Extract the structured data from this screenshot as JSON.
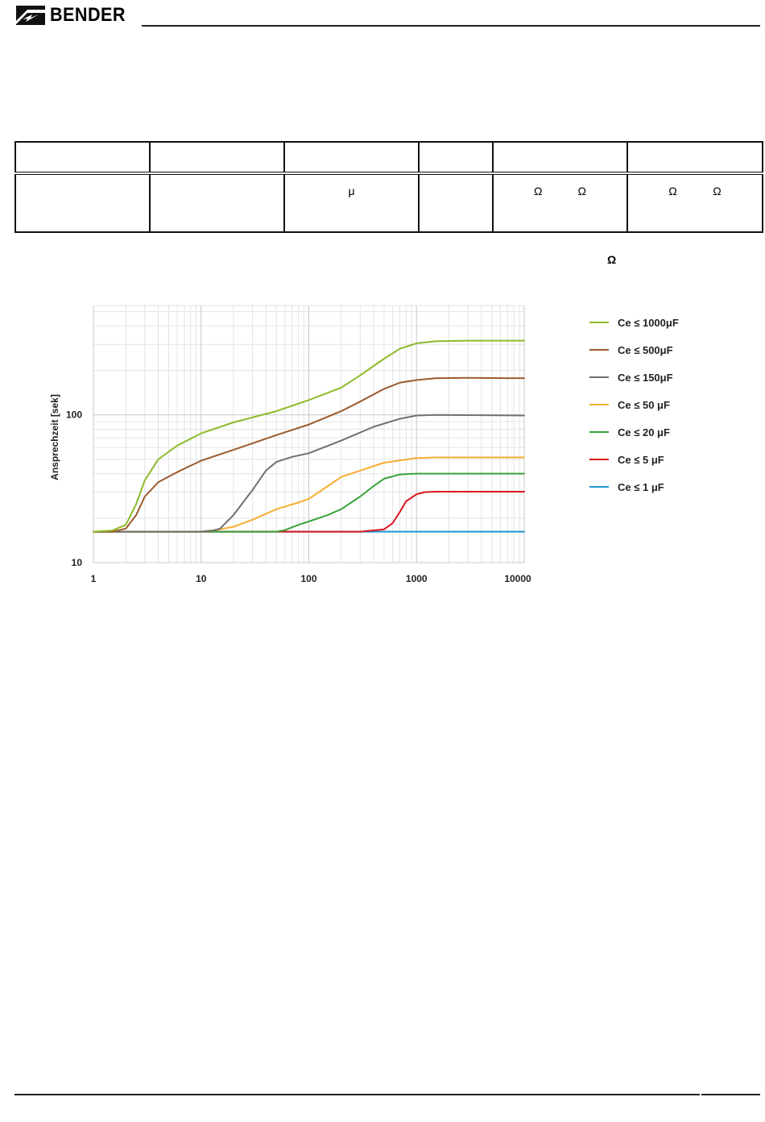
{
  "header": {
    "brand": "BENDER",
    "logo_icon": "bender-logo-icon"
  },
  "table": {
    "symbols": {
      "micro": "μ",
      "omega": "Ω"
    }
  },
  "omega_label": "Ω",
  "colors": {
    "series_1000": "#8dbb2a",
    "series_500": "#9b5a2d",
    "series_150": "#707070",
    "series_50": "#f6ae33",
    "series_20": "#3aa23a",
    "series_5": "#d8141c",
    "series_1": "#1f95d3"
  },
  "chart_data": {
    "type": "line",
    "title": "",
    "xlabel": "",
    "ylabel": "Ansprechzeit [sek]",
    "xscale": "log",
    "yscale": "log",
    "xlim": [
      1,
      10000
    ],
    "ylim": [
      10,
      550
    ],
    "x_ticks": [
      "1",
      "10",
      "100",
      "1000",
      "10000"
    ],
    "y_ticks": [
      "10",
      "100"
    ],
    "grid": true,
    "legend_position": "right",
    "series": [
      {
        "name": "Ce ≤ 1000μF",
        "color": "#8dbb2a",
        "points": [
          [
            1,
            16.2
          ],
          [
            1.5,
            16.5
          ],
          [
            2,
            18
          ],
          [
            2.5,
            25
          ],
          [
            3,
            36
          ],
          [
            4,
            50
          ],
          [
            6,
            62
          ],
          [
            10,
            75
          ],
          [
            20,
            89
          ],
          [
            50,
            106
          ],
          [
            100,
            126
          ],
          [
            200,
            153
          ],
          [
            300,
            185
          ],
          [
            500,
            240
          ],
          [
            700,
            280
          ],
          [
            1000,
            305
          ],
          [
            1500,
            315
          ],
          [
            3000,
            318
          ],
          [
            10000,
            318
          ]
        ]
      },
      {
        "name": "Ce ≤ 500μF",
        "color": "#9b5a2d",
        "points": [
          [
            1,
            16.2
          ],
          [
            1.5,
            16.2
          ],
          [
            2,
            17
          ],
          [
            2.5,
            21
          ],
          [
            3,
            28
          ],
          [
            4,
            35
          ],
          [
            6,
            41
          ],
          [
            10,
            49
          ],
          [
            20,
            58
          ],
          [
            50,
            73
          ],
          [
            100,
            86
          ],
          [
            200,
            106
          ],
          [
            300,
            123
          ],
          [
            500,
            150
          ],
          [
            700,
            165
          ],
          [
            1000,
            172
          ],
          [
            1500,
            177
          ],
          [
            3000,
            178
          ],
          [
            10000,
            177
          ]
        ]
      },
      {
        "name": "Ce ≤ 150μF",
        "color": "#707070",
        "points": [
          [
            1,
            16.2
          ],
          [
            10,
            16.2
          ],
          [
            13,
            16.5
          ],
          [
            15,
            17
          ],
          [
            20,
            21
          ],
          [
            30,
            31
          ],
          [
            40,
            42
          ],
          [
            50,
            48
          ],
          [
            70,
            52
          ],
          [
            100,
            55
          ],
          [
            200,
            67
          ],
          [
            400,
            83
          ],
          [
            700,
            94
          ],
          [
            1000,
            99
          ],
          [
            1500,
            100
          ],
          [
            10000,
            99
          ]
        ]
      },
      {
        "name": "Ce ≤ 50 μF",
        "color": "#f6ae33",
        "points": [
          [
            1,
            16.2
          ],
          [
            10,
            16.2
          ],
          [
            15,
            16.8
          ],
          [
            20,
            17.5
          ],
          [
            30,
            19.5
          ],
          [
            50,
            23
          ],
          [
            80,
            25.5
          ],
          [
            100,
            27
          ],
          [
            150,
            33
          ],
          [
            200,
            38
          ],
          [
            300,
            42
          ],
          [
            500,
            47.5
          ],
          [
            1000,
            51
          ],
          [
            1500,
            51.5
          ],
          [
            10000,
            51.5
          ]
        ]
      },
      {
        "name": "Ce ≤ 20 μF",
        "color": "#3aa23a",
        "points": [
          [
            1,
            16.2
          ],
          [
            50,
            16.2
          ],
          [
            60,
            16.6
          ],
          [
            80,
            18
          ],
          [
            100,
            19
          ],
          [
            150,
            21
          ],
          [
            200,
            23
          ],
          [
            300,
            28
          ],
          [
            400,
            33
          ],
          [
            500,
            37
          ],
          [
            700,
            39.5
          ],
          [
            1000,
            40
          ],
          [
            10000,
            40
          ]
        ]
      },
      {
        "name": "Ce ≤ 5 μF",
        "color": "#d8141c",
        "points": [
          [
            1,
            16.2
          ],
          [
            300,
            16.2
          ],
          [
            500,
            16.8
          ],
          [
            600,
            18.5
          ],
          [
            700,
            22
          ],
          [
            800,
            26
          ],
          [
            1000,
            29
          ],
          [
            1200,
            30
          ],
          [
            1500,
            30.2
          ],
          [
            10000,
            30.2
          ]
        ]
      },
      {
        "name": "Ce ≤ 1 μF",
        "color": "#1f95d3",
        "points": [
          [
            1,
            16.2
          ],
          [
            10000,
            16.2
          ]
        ]
      }
    ]
  }
}
